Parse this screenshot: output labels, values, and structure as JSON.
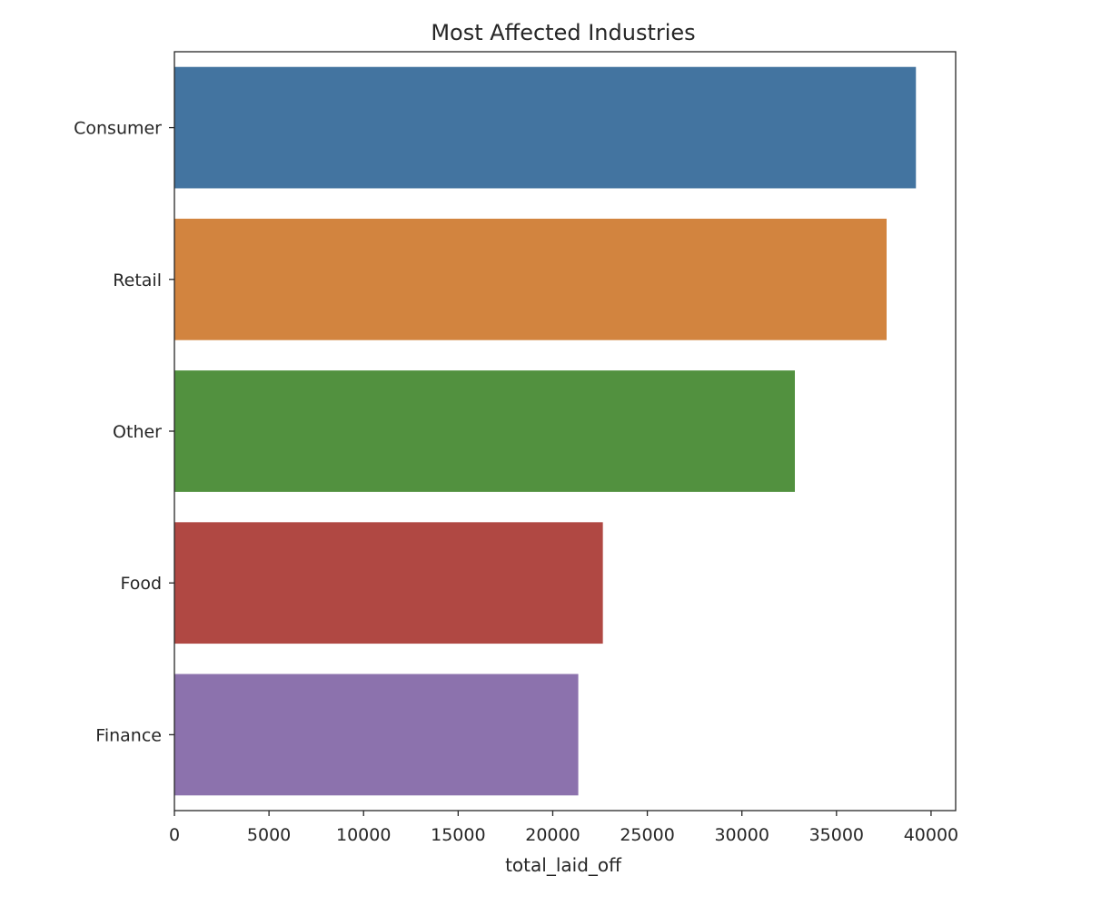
{
  "chart_data": {
    "type": "bar",
    "orientation": "horizontal",
    "title": "Most Affected Industries",
    "xlabel": "total_laid_off",
    "ylabel": "",
    "categories": [
      "Consumer",
      "Retail",
      "Other",
      "Food",
      "Finance"
    ],
    "values": [
      39200,
      37650,
      32800,
      22650,
      21350
    ],
    "colors": [
      "#4374A0",
      "#D2843F",
      "#52913F",
      "#B04843",
      "#8C72AD"
    ],
    "xlim": [
      0,
      41300
    ],
    "xticks": [
      0,
      5000,
      10000,
      15000,
      20000,
      25000,
      30000,
      35000,
      40000
    ],
    "xtick_labels": [
      "0",
      "5000",
      "10000",
      "15000",
      "20000",
      "25000",
      "30000",
      "35000",
      "40000"
    ],
    "grid": false,
    "legend": "none"
  }
}
